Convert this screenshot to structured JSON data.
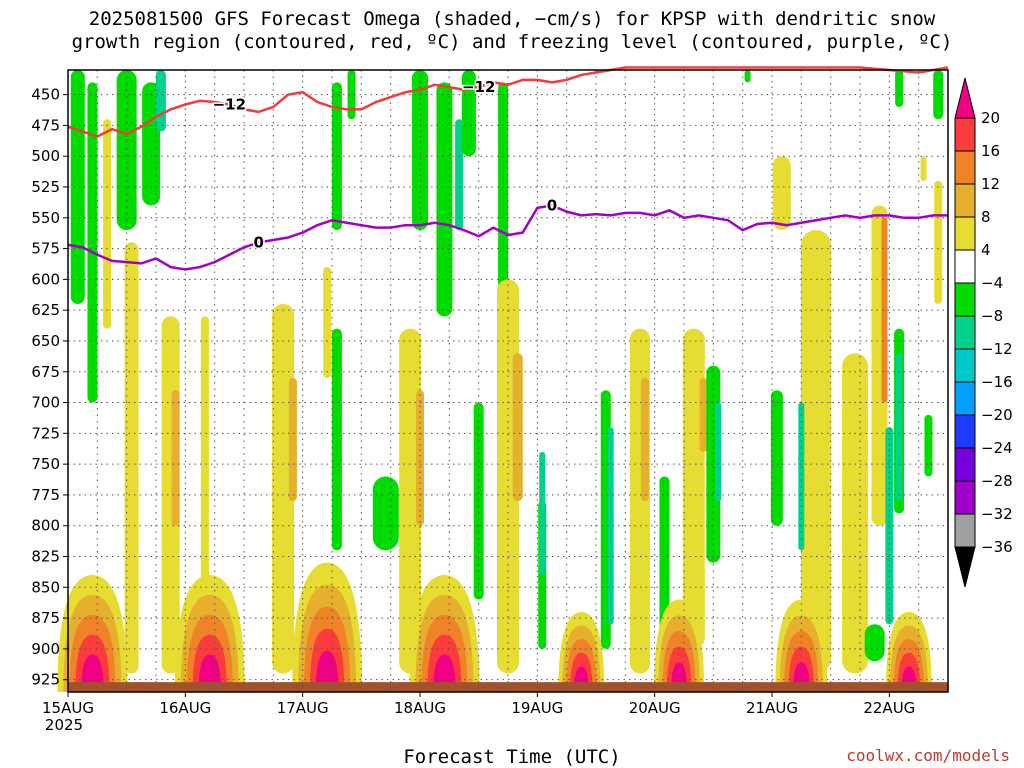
{
  "title": {
    "line1": "2025081500 GFS Forecast Omega (shaded, −cm/s) for KPSP with dendritic snow",
    "line2": "growth region (contoured, red, ºC) and freezing level (contoured, purple, ºC)"
  },
  "xlabel": "Forecast Time (UTC)",
  "credit": "coolwx.com/models",
  "colors": {
    "neg36": "#a0a0a0",
    "neg32": "#a000c8",
    "neg28": "#7800dc",
    "neg24": "#1e3cff",
    "neg20": "#00a0ff",
    "neg16": "#00c8c8",
    "neg12": "#00d28c",
    "neg8": "#00dc00",
    "zero": "#ffffff",
    "pos4": "#e6dc32",
    "pos8": "#e6af2d",
    "pos12": "#f08228",
    "pos16": "#fa3c3c",
    "pos20": "#f00082",
    "dgz_contour": "#f03c3c",
    "freezing_contour": "#a000c8",
    "ground": "#a0522d"
  },
  "chart_data": {
    "type": "heatmap",
    "title": "2025081500 GFS Forecast Omega (shaded, −cm/s) for KPSP with dendritic snow growth region (contoured, red, ºC) and freezing level (contoured, purple, ºC)",
    "xlabel": "Forecast Time (UTC)",
    "ylabel": "",
    "x_ticks": [
      "15AUG\n2025",
      "16AUG",
      "17AUG",
      "18AUG",
      "19AUG",
      "20AUG",
      "21AUG",
      "22AUG"
    ],
    "x_range_hours": [
      0,
      180
    ],
    "y_ticks": [
      450,
      475,
      500,
      525,
      550,
      575,
      600,
      625,
      650,
      675,
      700,
      725,
      750,
      775,
      800,
      825,
      850,
      875,
      900,
      925
    ],
    "y_range_hPa": [
      430,
      935
    ],
    "grid": true,
    "colorbar": {
      "levels": [
        20,
        16,
        12,
        8,
        4,
        -4,
        -8,
        -12,
        -16,
        -20,
        -24,
        -28,
        -32,
        -36
      ],
      "labels": [
        "20",
        "16",
        "12",
        "8",
        "4",
        "−4",
        "−8",
        "−12",
        "−16",
        "−20",
        "−24",
        "−28",
        "−32",
        "−36"
      ]
    },
    "contours": [
      {
        "name": "-12",
        "label": "−12",
        "color_key": "dgz_contour",
        "hours": [
          0,
          3,
          6,
          9,
          12,
          15,
          18,
          21,
          24,
          27,
          30,
          33,
          36,
          39,
          42,
          45,
          48,
          51,
          54,
          57,
          60,
          63,
          66,
          69,
          72,
          75,
          78,
          81,
          84,
          87,
          90,
          93,
          96,
          99,
          102,
          105,
          108,
          111,
          114,
          117,
          120,
          126,
          132,
          138,
          144,
          150,
          156,
          162,
          168,
          174,
          180
        ],
        "pressure": [
          476,
          480,
          484,
          478,
          482,
          476,
          468,
          462,
          458,
          455,
          456,
          458,
          462,
          464,
          460,
          450,
          448,
          456,
          460,
          462,
          462,
          456,
          452,
          448,
          446,
          442,
          444,
          446,
          444,
          440,
          442,
          438,
          438,
          440,
          438,
          434,
          432,
          430,
          428,
          428,
          428,
          428,
          428,
          428,
          428,
          428,
          428,
          428,
          430,
          432,
          428
        ]
      },
      {
        "name": "0",
        "label": "0",
        "color_key": "freezing_contour",
        "hours": [
          0,
          3,
          6,
          9,
          12,
          15,
          18,
          21,
          24,
          27,
          30,
          33,
          36,
          39,
          42,
          45,
          48,
          51,
          54,
          57,
          60,
          63,
          66,
          69,
          72,
          75,
          78,
          81,
          84,
          87,
          90,
          93,
          96,
          99,
          102,
          105,
          108,
          111,
          114,
          117,
          120,
          123,
          126,
          129,
          132,
          135,
          138,
          141,
          144,
          147,
          150,
          153,
          156,
          159,
          162,
          165,
          168,
          171,
          174,
          177,
          180
        ],
        "pressure": [
          572,
          574,
          580,
          585,
          586,
          587,
          583,
          590,
          592,
          590,
          586,
          580,
          574,
          570,
          568,
          566,
          562,
          556,
          552,
          554,
          556,
          558,
          558,
          556,
          556,
          554,
          556,
          560,
          565,
          558,
          564,
          562,
          542,
          540,
          545,
          548,
          547,
          548,
          546,
          546,
          548,
          544,
          550,
          548,
          550,
          552,
          560,
          555,
          554,
          556,
          554,
          552,
          550,
          548,
          550,
          548,
          548,
          550,
          550,
          548,
          548
        ]
      }
    ]
  }
}
